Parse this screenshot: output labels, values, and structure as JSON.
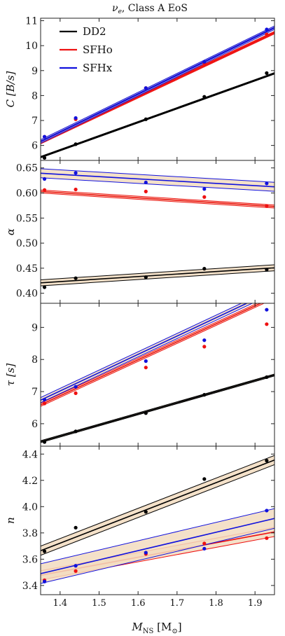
{
  "figure": {
    "title": "ν_e, Class A EoS",
    "title_main": "ν",
    "title_sub": "e",
    "title_rest": ", Class A EoS",
    "xlabel": "M_NS [M_⊙]",
    "xlabel_main": "M",
    "xlabel_sub": "NS",
    "xlabel_rest": " [M",
    "xlabel_sub2": "⊙",
    "xlabel_close": "]"
  },
  "colors": {
    "DD2": "#000000",
    "SFHo": "#ee1111",
    "SFHx": "#1111dd",
    "band": "#f2dcc0"
  },
  "chart_data": [
    {
      "type": "scatter",
      "ylabel": "C [B/s]",
      "xlim": [
        1.35,
        1.95
      ],
      "ylim": [
        5.4,
        11.1
      ],
      "x_ticks": [
        1.4,
        1.5,
        1.6,
        1.7,
        1.8,
        1.9
      ],
      "y_ticks": [
        6,
        7,
        8,
        9,
        10,
        11
      ],
      "legend": {
        "placement": "top-left",
        "entries": [
          "DD2",
          "SFHo",
          "SFHx"
        ]
      },
      "x": [
        1.36,
        1.44,
        1.62,
        1.77,
        1.93
      ],
      "series": [
        {
          "name": "DD2",
          "values": [
            5.5,
            6.05,
            7.05,
            7.95,
            8.9
          ],
          "fit": {
            "intercept": -2.03,
            "slope": 5.6,
            "band": 0.03
          }
        },
        {
          "name": "SFHo",
          "values": [
            6.35,
            7.05,
            8.3,
            9.3,
            10.45
          ],
          "fit": {
            "intercept": -3.81,
            "slope": 7.35,
            "band": 0.05
          }
        },
        {
          "name": "SFHx",
          "values": [
            6.35,
            7.1,
            8.3,
            9.35,
            10.65
          ],
          "fit": {
            "intercept": -4.1,
            "slope": 7.6,
            "band": 0.07
          }
        }
      ]
    },
    {
      "type": "scatter",
      "ylabel": "α",
      "xlim": [
        1.35,
        1.95
      ],
      "ylim": [
        0.38,
        0.665
      ],
      "x_ticks": [
        1.4,
        1.5,
        1.6,
        1.7,
        1.8,
        1.9
      ],
      "y_ticks": [
        0.4,
        0.45,
        0.5,
        0.55,
        0.6,
        0.65
      ],
      "x": [
        1.36,
        1.44,
        1.62,
        1.77,
        1.93
      ],
      "series": [
        {
          "name": "DD2",
          "values": [
            0.412,
            0.43,
            0.432,
            0.449,
            0.447
          ],
          "fit": {
            "intercept": 0.3533,
            "slope": 0.05,
            "band": 0.006
          }
        },
        {
          "name": "SFHo",
          "values": [
            0.606,
            0.607,
            0.603,
            0.592,
            0.574
          ],
          "fit": {
            "intercept": 0.6705,
            "slope": -0.05,
            "band": 0.003
          }
        },
        {
          "name": "SFHx",
          "values": [
            0.628,
            0.64,
            0.621,
            0.608,
            0.619
          ],
          "fit": {
            "intercept": 0.7001,
            "slope": -0.045,
            "band": 0.009
          }
        }
      ]
    },
    {
      "type": "scatter",
      "ylabel": "τ [s]",
      "xlim": [
        1.35,
        1.95
      ],
      "ylim": [
        5.3,
        9.75
      ],
      "x_ticks": [
        1.4,
        1.5,
        1.6,
        1.7,
        1.8,
        1.9
      ],
      "y_ticks": [
        6,
        7,
        8,
        9
      ],
      "x": [
        1.36,
        1.44,
        1.62,
        1.77,
        1.93
      ],
      "series": [
        {
          "name": "DD2",
          "values": [
            5.43,
            5.76,
            6.33,
            6.9,
            7.45
          ],
          "fit": {
            "intercept": 0.77,
            "slope": 3.46,
            "band": 0.03
          }
        },
        {
          "name": "SFHo",
          "values": [
            6.63,
            6.95,
            7.75,
            8.4,
            9.1
          ],
          "fit": {
            "intercept": -0.97,
            "slope": 5.6,
            "band": 0.05
          }
        },
        {
          "name": "SFHx",
          "values": [
            6.75,
            7.15,
            7.95,
            8.6,
            9.55
          ],
          "fit": {
            "intercept": -0.96,
            "slope": 5.7,
            "band": 0.08
          }
        }
      ]
    },
    {
      "type": "scatter",
      "ylabel": "n",
      "xlim": [
        1.35,
        1.95
      ],
      "ylim": [
        3.33,
        4.46
      ],
      "x_ticks": [
        1.4,
        1.5,
        1.6,
        1.7,
        1.8,
        1.9
      ],
      "y_ticks": [
        3.4,
        3.6,
        3.8,
        4.0,
        4.2,
        4.4
      ],
      "x": [
        1.36,
        1.44,
        1.62,
        1.77,
        1.93
      ],
      "series": [
        {
          "name": "DD2",
          "values": [
            3.66,
            3.84,
            3.96,
            4.21,
            4.35
          ],
          "fit": {
            "intercept": 2.112,
            "slope": 1.15,
            "band": 0.035
          }
        },
        {
          "name": "SFHo",
          "values": [
            3.44,
            3.51,
            3.64,
            3.72,
            3.76
          ],
          "fit": {
            "intercept": 2.735,
            "slope": 0.55,
            "band": 0.035
          }
        },
        {
          "name": "SFHx",
          "values": [
            3.43,
            3.55,
            3.65,
            3.68,
            3.97
          ],
          "fit": {
            "intercept": 2.545,
            "slope": 0.7,
            "band": 0.075
          }
        }
      ]
    }
  ]
}
